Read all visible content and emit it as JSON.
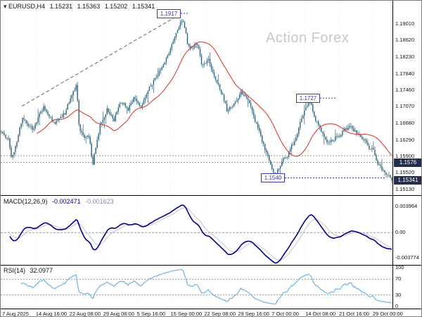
{
  "header": {
    "symbol_tf": "EURUSD,H4",
    "open": "1.15231",
    "high": "1.15363",
    "low": "1.15202",
    "close": "1.15341"
  },
  "watermark": "Action Forex",
  "chart_data": {
    "type": "candlestick",
    "symbol": "EURUSD",
    "timeframe": "H4",
    "last_close": 1.15341,
    "candles_count": 278,
    "seed": 11,
    "ma_period": 26,
    "anchors": [
      [
        0.0,
        1.1648
      ],
      [
        0.018,
        1.163
      ],
      [
        0.027,
        1.1585
      ],
      [
        0.054,
        1.1683
      ],
      [
        0.081,
        1.1655
      ],
      [
        0.108,
        1.1705
      ],
      [
        0.135,
        1.1668
      ],
      [
        0.162,
        1.169
      ],
      [
        0.185,
        1.1748
      ],
      [
        0.192,
        1.1758
      ],
      [
        0.2,
        1.1648
      ],
      [
        0.225,
        1.163
      ],
      [
        0.234,
        1.1572
      ],
      [
        0.252,
        1.1665
      ],
      [
        0.27,
        1.1705
      ],
      [
        0.288,
        1.1676
      ],
      [
        0.306,
        1.1722
      ],
      [
        0.324,
        1.17
      ],
      [
        0.342,
        1.173
      ],
      [
        0.36,
        1.1708
      ],
      [
        0.378,
        1.1752
      ],
      [
        0.396,
        1.178
      ],
      [
        0.414,
        1.1806
      ],
      [
        0.432,
        1.184
      ],
      [
        0.45,
        1.188
      ],
      [
        0.464,
        1.1916
      ],
      [
        0.47,
        1.189
      ],
      [
        0.477,
        1.1852
      ],
      [
        0.486,
        1.1832
      ],
      [
        0.5,
        1.186
      ],
      [
        0.513,
        1.181
      ],
      [
        0.531,
        1.1816
      ],
      [
        0.549,
        1.1776
      ],
      [
        0.567,
        1.1734
      ],
      [
        0.579,
        1.1694
      ],
      [
        0.594,
        1.1716
      ],
      [
        0.612,
        1.174
      ],
      [
        0.63,
        1.1726
      ],
      [
        0.647,
        1.1676
      ],
      [
        0.665,
        1.1634
      ],
      [
        0.683,
        1.1586
      ],
      [
        0.701,
        1.1544
      ],
      [
        0.719,
        1.1576
      ],
      [
        0.737,
        1.1601
      ],
      [
        0.755,
        1.1634
      ],
      [
        0.773,
        1.169
      ],
      [
        0.789,
        1.1726
      ],
      [
        0.8,
        1.169
      ],
      [
        0.809,
        1.1668
      ],
      [
        0.827,
        1.1634
      ],
      [
        0.845,
        1.1626
      ],
      [
        0.863,
        1.1642
      ],
      [
        0.881,
        1.165
      ],
      [
        0.899,
        1.1658
      ],
      [
        0.917,
        1.1641
      ],
      [
        0.935,
        1.1626
      ],
      [
        0.953,
        1.1601
      ],
      [
        0.971,
        1.1561
      ],
      [
        1.0,
        1.15341
      ]
    ],
    "price_axis": {
      "top_price": 1.1955,
      "bottom_price": 1.14995,
      "labels": [
        "1.19010",
        "1.18620",
        "1.18230",
        "1.17840",
        "1.17460",
        "1.17070",
        "1.16680",
        "1.16290",
        "1.15900",
        "1.15520",
        "1.15130"
      ]
    },
    "highlighted_prices": [
      {
        "label": "1.1576",
        "price": 1.1576
      },
      {
        "label": "1.15341",
        "price": 1.15341
      }
    ],
    "support_levels": [
      1.1592,
      1.1576
    ],
    "annotations": [
      {
        "label": "1.1917",
        "price": 1.1917,
        "box_x": 222,
        "dy": -5,
        "seg": [
          256,
          268
        ]
      },
      {
        "label": "1.1727",
        "price": 1.1727,
        "box_x": 420,
        "dy": 0,
        "seg": [
          454,
          476
        ]
      },
      {
        "label": "1.1540",
        "price": 1.154,
        "box_x": 370,
        "dy": 0,
        "seg": [
          404,
          548
        ]
      }
    ],
    "trendline": {
      "points": [
        [
          30,
          1.1708
        ],
        [
          256,
          1.1924
        ]
      ]
    },
    "time_axis": [
      "7 Aug 2025",
      "14 Aug 16:00",
      "22 Aug 08:00",
      "29 Aug 08:00",
      "5 Sep 16:00",
      "15 Sep 00:00",
      "22 Sep 08:00",
      "29 Sep 16:00",
      "7 Oct 00:00",
      "14 Oct 08:00",
      "21 Oct 16:00",
      "29 Oct 00:00"
    ],
    "indicators": {
      "macd": {
        "label": "MACD(12,26,9)",
        "value_main": "-0.002471",
        "value_signal": "-0.001623",
        "axis_labels": [
          "0.003964",
          "0.00",
          "-0.003774"
        ],
        "y_range": [
          -0.0048,
          0.0055
        ],
        "fast": 12,
        "slow": 26,
        "signal": 9
      },
      "rsi": {
        "label": "RSI(14)",
        "value": "32.0977",
        "axis_labels": [
          "100",
          "70",
          "30",
          "0"
        ],
        "levels": [
          70,
          30
        ],
        "period": 14,
        "y_range": [
          -5,
          105
        ]
      }
    },
    "colors": {
      "candle": "#355e72",
      "ma": "#dd3b33",
      "macd": "#00008b",
      "macd_signal": "#c2c2dc",
      "rsi": "#6fb3dc",
      "flag_border": "#3a3aa0",
      "axis_flag_bg": "#242e4c",
      "watermark": "#c7c7c7"
    }
  }
}
